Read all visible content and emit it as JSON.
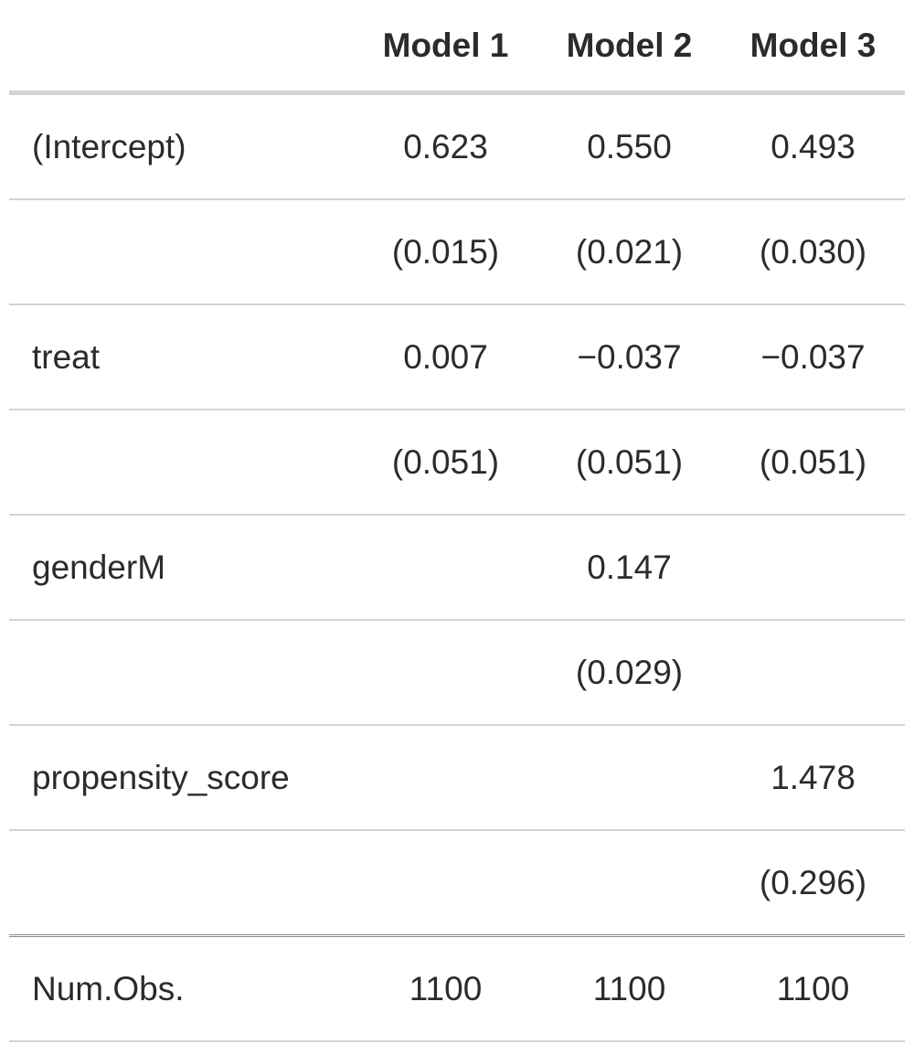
{
  "table": {
    "header": [
      "",
      "Model 1",
      "Model 2",
      "Model 3"
    ],
    "rows": [
      {
        "label": "(Intercept)",
        "m1": "0.623",
        "m2": "0.550",
        "m3": "0.493"
      },
      {
        "label": "",
        "m1": "(0.015)",
        "m2": "(0.021)",
        "m3": "(0.030)"
      },
      {
        "label": "treat",
        "m1": "0.007",
        "m2": "−0.037",
        "m3": "−0.037"
      },
      {
        "label": "",
        "m1": "(0.051)",
        "m2": "(0.051)",
        "m3": "(0.051)"
      },
      {
        "label": "genderM",
        "m1": "",
        "m2": "0.147",
        "m3": ""
      },
      {
        "label": "",
        "m1": "",
        "m2": "(0.029)",
        "m3": ""
      },
      {
        "label": "propensity_score",
        "m1": "",
        "m2": "",
        "m3": "1.478"
      },
      {
        "label": "",
        "m1": "",
        "m2": "",
        "m3": "(0.296)"
      }
    ],
    "gof": [
      {
        "label": "Num.Obs.",
        "m1": "1100",
        "m2": "1100",
        "m3": "1100"
      }
    ]
  }
}
